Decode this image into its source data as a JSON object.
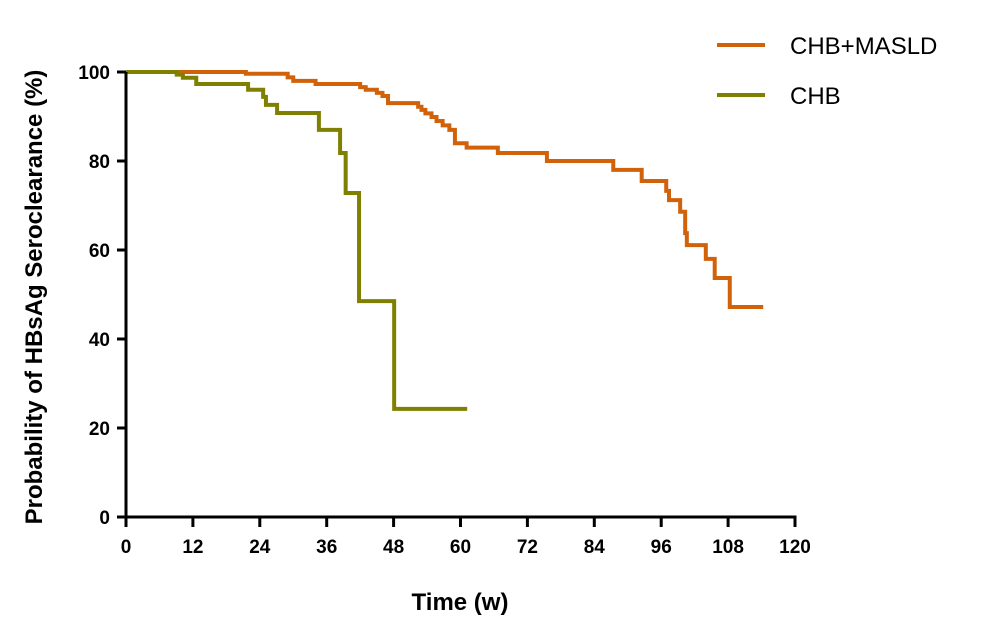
{
  "chart_data": {
    "type": "line",
    "subtype": "kaplan-meier-step",
    "xlabel": "Time (w)",
    "ylabel": "Probability of HBsAg Seroclearance (%)",
    "xlim": [
      0,
      120
    ],
    "ylim": [
      0,
      100
    ],
    "xticks": [
      0,
      12,
      24,
      36,
      48,
      60,
      72,
      84,
      96,
      108,
      120
    ],
    "yticks": [
      0,
      20,
      40,
      60,
      80,
      100
    ],
    "grid": false,
    "legend_position": "top-right",
    "series": [
      {
        "name": "CHB+MASLD",
        "color": "#D2620A",
        "points": [
          [
            0,
            100
          ],
          [
            21.5,
            99.6
          ],
          [
            29,
            98.8
          ],
          [
            30,
            98
          ],
          [
            34,
            97.3
          ],
          [
            42,
            96.6
          ],
          [
            43,
            96
          ],
          [
            45,
            95.3
          ],
          [
            46,
            94.6
          ],
          [
            47,
            93
          ],
          [
            52.4,
            92.2
          ],
          [
            53,
            91.5
          ],
          [
            53.7,
            90.7
          ],
          [
            54.8,
            89.9
          ],
          [
            55.7,
            89
          ],
          [
            56.8,
            88
          ],
          [
            58,
            87
          ],
          [
            59,
            84
          ],
          [
            61.1,
            83
          ],
          [
            66.7,
            81.8
          ],
          [
            75.5,
            80
          ],
          [
            87.4,
            78
          ],
          [
            92.5,
            75.5
          ],
          [
            96.9,
            73.3
          ],
          [
            97.4,
            71.2
          ],
          [
            99.4,
            68.6
          ],
          [
            100.3,
            63.8
          ],
          [
            100.6,
            61.1
          ],
          [
            104,
            58
          ],
          [
            105.6,
            53.7
          ],
          [
            108.3,
            47.2
          ],
          [
            114.3,
            47.2
          ]
        ]
      },
      {
        "name": "CHB",
        "color": "#808000",
        "points": [
          [
            0,
            100
          ],
          [
            9.1,
            99.4
          ],
          [
            10.2,
            98.7
          ],
          [
            12.6,
            97.3
          ],
          [
            21.9,
            96
          ],
          [
            24.6,
            94.4
          ],
          [
            25.1,
            92.6
          ],
          [
            27.1,
            90.8
          ],
          [
            34.6,
            87
          ],
          [
            38.4,
            81.8
          ],
          [
            39.4,
            72.8
          ],
          [
            41.8,
            48.5
          ],
          [
            48.1,
            24.3
          ],
          [
            61.2,
            24.3
          ]
        ]
      }
    ]
  }
}
